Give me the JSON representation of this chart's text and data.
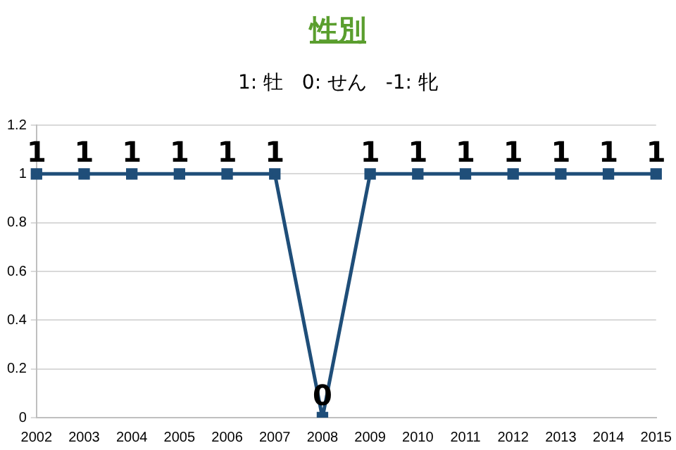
{
  "chart_data": {
    "type": "line",
    "title": "性別",
    "subtitle": "1: 牡   0: せん   -1: 牝",
    "categories": [
      "2002",
      "2003",
      "2004",
      "2005",
      "2006",
      "2007",
      "2008",
      "2009",
      "2010",
      "2011",
      "2012",
      "2013",
      "2014",
      "2015"
    ],
    "series": [
      {
        "color": "#1f4e79",
        "values": [
          1,
          1,
          1,
          1,
          1,
          1,
          0,
          1,
          1,
          1,
          1,
          1,
          1,
          1
        ]
      }
    ],
    "ylim": [
      0,
      1.2
    ],
    "yticks": [
      0,
      0.2,
      0.4,
      0.6,
      0.8,
      1,
      1.2
    ],
    "grid": "y",
    "legend": false,
    "marker": "square",
    "line_style": "solid",
    "data_labels": true
  }
}
